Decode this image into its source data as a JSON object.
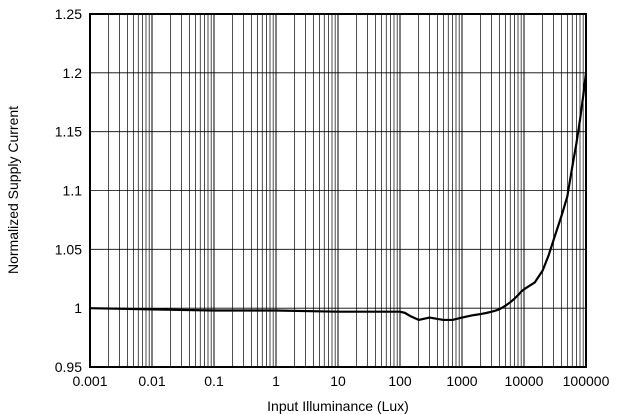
{
  "chart_data": {
    "type": "line",
    "title": "",
    "xlabel": "Input Illuminance (Lux)",
    "ylabel": "Normalized Supply Current",
    "x_scale": "log",
    "xlim": [
      0.001,
      100000
    ],
    "ylim": [
      0.95,
      1.25
    ],
    "grid": true,
    "legend": "none",
    "x_ticks": [
      "0.001",
      "0.01",
      "0.1",
      "1",
      "10",
      "100",
      "1000",
      "10000",
      "100000"
    ],
    "y_ticks": [
      "0.95",
      "1",
      "1.05",
      "1.1",
      "1.15",
      "1.2",
      "1.25"
    ],
    "series": [
      {
        "color": "#000000",
        "x": [
          0.001,
          0.01,
          0.1,
          1,
          10,
          100,
          120,
          150,
          200,
          300,
          500,
          700,
          1000,
          1500,
          2000,
          2500,
          3000,
          3500,
          4000,
          5000,
          6000,
          7000,
          8000,
          9000,
          10000,
          15000,
          20000,
          25000,
          30000,
          40000,
          50000,
          60000,
          70000,
          80000,
          90000,
          100000
        ],
        "y": [
          1.0,
          0.999,
          0.998,
          0.998,
          0.997,
          0.997,
          0.996,
          0.993,
          0.99,
          0.992,
          0.99,
          0.99,
          0.992,
          0.994,
          0.995,
          0.996,
          0.997,
          0.998,
          0.999,
          1.002,
          1.005,
          1.008,
          1.011,
          1.014,
          1.016,
          1.022,
          1.032,
          1.045,
          1.058,
          1.078,
          1.095,
          1.12,
          1.14,
          1.16,
          1.18,
          1.2
        ]
      }
    ]
  }
}
